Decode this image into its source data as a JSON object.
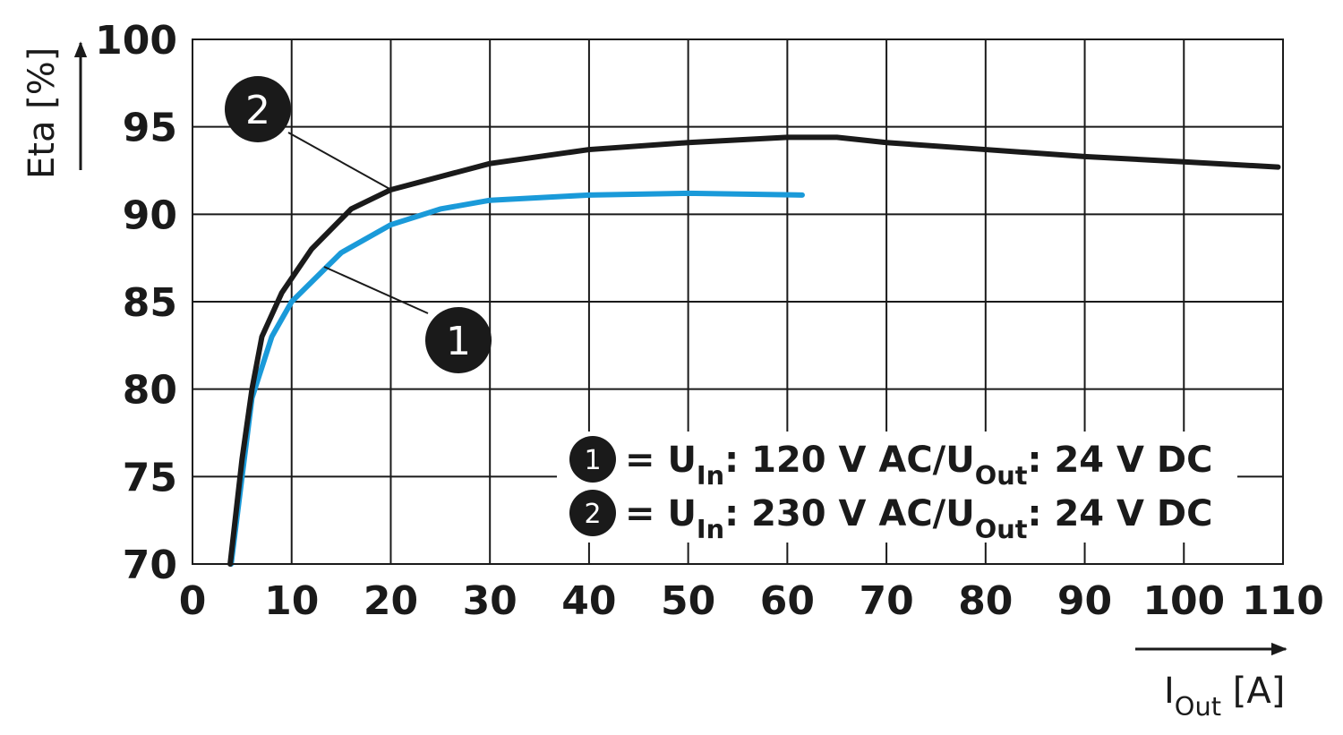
{
  "chart_data": {
    "type": "line",
    "y_label": "Eta [%]",
    "x_label": [
      "I",
      "Out",
      " [A]"
    ],
    "xlim": [
      0,
      110
    ],
    "xticks": [
      0,
      10,
      20,
      30,
      40,
      50,
      60,
      70,
      80,
      90,
      100,
      110
    ],
    "ylim": [
      70,
      100
    ],
    "yticks": [
      70,
      75,
      80,
      85,
      90,
      95,
      100
    ],
    "grid": true,
    "series": [
      {
        "name": "1",
        "color": "#1a9ad9",
        "legend": [
          "= U",
          "In",
          ": 120 V AC/U",
          "Out",
          ": 24 V DC"
        ],
        "x": [
          3.9,
          5,
          6,
          8,
          10,
          15,
          20,
          25,
          30,
          40,
          50,
          61.5
        ],
        "values": [
          70,
          75,
          79.5,
          83,
          85,
          87.8,
          89.4,
          90.3,
          90.8,
          91.1,
          91.2,
          91.1
        ]
      },
      {
        "name": "2",
        "color": "#1a1a1a",
        "legend": [
          "= U",
          "In",
          ": 230 V AC/U",
          "Out",
          ": 24 V DC"
        ],
        "x": [
          3.8,
          5,
          6,
          7,
          9,
          12,
          16,
          20,
          30,
          40,
          50,
          60,
          65,
          70,
          80,
          90,
          100,
          109.5
        ],
        "values": [
          70,
          76,
          80,
          83,
          85.5,
          88,
          90.3,
          91.4,
          92.9,
          93.7,
          94.1,
          94.4,
          94.4,
          94.1,
          93.7,
          93.3,
          93,
          92.7
        ]
      }
    ]
  }
}
